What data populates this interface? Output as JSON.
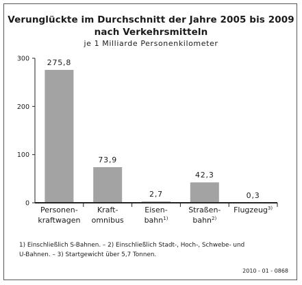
{
  "header": {
    "title_line1": "Verunglückte im Durchschnitt der Jahre 2005 bis 2009",
    "title_line2": "nach Verkehrsmitteln",
    "subtitle": "je 1 Milliarde Personenkilometer"
  },
  "chart_data": {
    "type": "bar",
    "title": "Verunglückte im Durchschnitt der Jahre 2005 bis 2009 nach Verkehrsmitteln",
    "subtitle": "je 1 Milliarde Personenkilometer",
    "xlabel": "",
    "ylabel": "",
    "ylim": [
      0,
      300
    ],
    "yticks": [
      0,
      100,
      200,
      300
    ],
    "grid": false,
    "legend": "none",
    "bar_color": "#a3a3a3",
    "categories": [
      [
        "Personen-",
        "kraftwagen"
      ],
      [
        "Kraft-",
        "omnibus"
      ],
      [
        "Eisen-",
        "bahn1)"
      ],
      [
        "Straßen-",
        "bahn2)"
      ],
      [
        "Flugzeug3)"
      ]
    ],
    "values": [
      275.8,
      73.9,
      2.7,
      42.3,
      0.3
    ],
    "value_labels": [
      "275,8",
      "73,9",
      "2,7",
      "42,3",
      "0,3"
    ]
  },
  "footnote": {
    "line1": "1) Einschließlich S-Bahnen. – 2) Einschließlich Stadt-, Hoch-, Schwebe- und",
    "line2": "U-Bahnen. – 3) Startgewicht über 5,7 Tonnen."
  },
  "code": "2010 - 01 - 0868"
}
